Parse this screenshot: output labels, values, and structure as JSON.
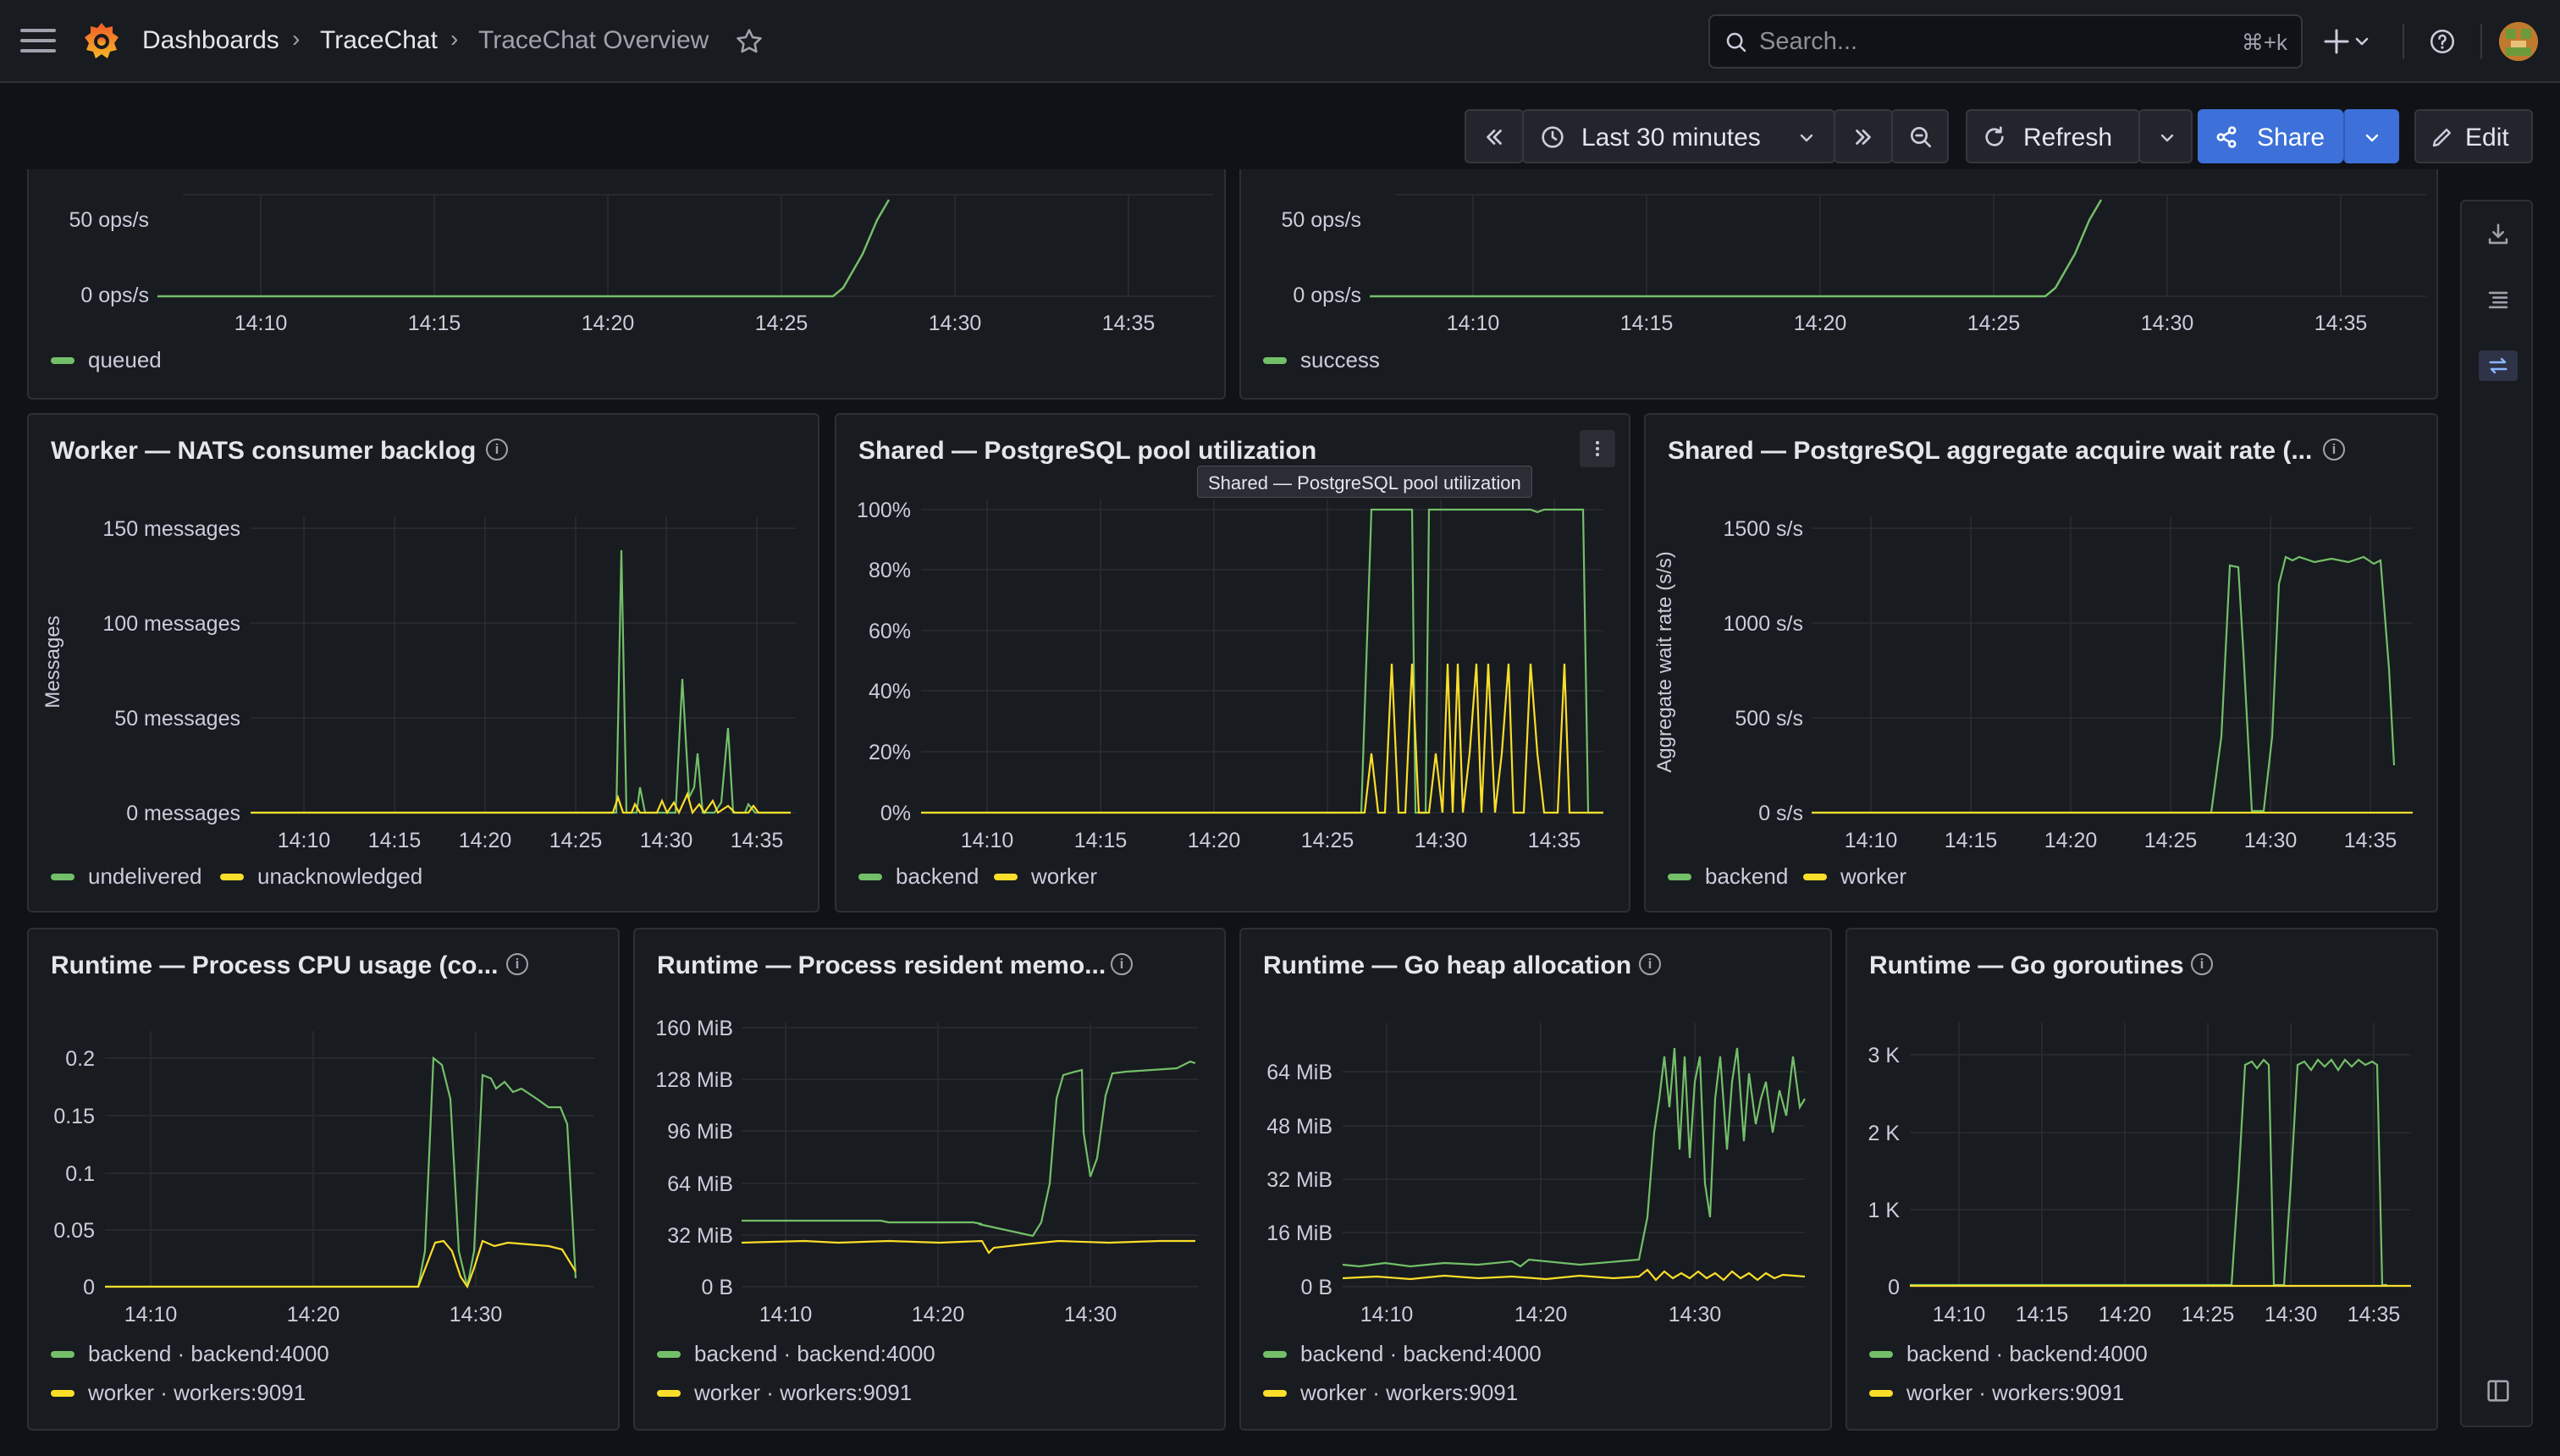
{
  "breadcrumb": {
    "root": "Dashboards",
    "folder": "TraceChat",
    "current": "TraceChat Overview"
  },
  "search": {
    "placeholder": "Search...",
    "shortcut": "⌘+k"
  },
  "toolbar": {
    "time_range": "Last 30 minutes",
    "refresh": "Refresh",
    "share": "Share",
    "edit": "Edit"
  },
  "colors": {
    "green": "#73bf69",
    "yellow": "#fade2a",
    "accent": "#3d71d9",
    "bg": "#111217",
    "panel": "#181b1f"
  },
  "panels": {
    "top_left": {
      "yticks": [
        "50 ops/s",
        "0 ops/s"
      ],
      "xticks": [
        "14:10",
        "14:15",
        "14:20",
        "14:25",
        "14:30",
        "14:35"
      ],
      "legend": [
        "queued"
      ]
    },
    "top_right": {
      "yticks": [
        "50 ops/s",
        "0 ops/s"
      ],
      "xticks": [
        "14:10",
        "14:15",
        "14:20",
        "14:25",
        "14:30",
        "14:35"
      ],
      "legend": [
        "success"
      ]
    },
    "nats": {
      "title": "Worker — NATS consumer backlog",
      "ylabel": "Messages",
      "yticks": [
        "150  messages",
        "100  messages",
        "50  messages",
        "0  messages"
      ],
      "xticks": [
        "14:10",
        "14:15",
        "14:20",
        "14:25",
        "14:30",
        "14:35"
      ],
      "legend": [
        "undelivered",
        "unacknowledged"
      ]
    },
    "pool": {
      "title": "Shared — PostgreSQL pool utilization",
      "tooltip": "Shared — PostgreSQL pool utilization",
      "yticks": [
        "100%",
        "80%",
        "60%",
        "40%",
        "20%",
        "0%"
      ],
      "xticks": [
        "14:10",
        "14:15",
        "14:20",
        "14:25",
        "14:30",
        "14:35"
      ],
      "legend": [
        "backend",
        "worker"
      ]
    },
    "wait": {
      "title": "Shared — PostgreSQL aggregate acquire wait rate (...",
      "ylabel": "Aggregate wait rate (s/s)",
      "yticks": [
        "1500  s/s",
        "1000  s/s",
        "500  s/s",
        "0  s/s"
      ],
      "xticks": [
        "14:10",
        "14:15",
        "14:20",
        "14:25",
        "14:30",
        "14:35"
      ],
      "legend": [
        "backend",
        "worker"
      ]
    },
    "cpu": {
      "title": "Runtime — Process CPU usage (co...",
      "yticks": [
        "0.2",
        "0.15",
        "0.1",
        "0.05",
        "0"
      ],
      "xticks": [
        "14:10",
        "14:20",
        "14:30"
      ],
      "legend": [
        "backend · backend:4000",
        "worker · workers:9091"
      ]
    },
    "mem": {
      "title": "Runtime — Process resident memo...",
      "yticks": [
        "160 MiB",
        "128 MiB",
        "96 MiB",
        "64 MiB",
        "32 MiB",
        "0 B"
      ],
      "xticks": [
        "14:10",
        "14:20",
        "14:30"
      ],
      "legend": [
        "backend · backend:4000",
        "worker · workers:9091"
      ]
    },
    "heap": {
      "title": "Runtime — Go heap allocation",
      "yticks": [
        "64 MiB",
        "48 MiB",
        "32 MiB",
        "16 MiB",
        "0 B"
      ],
      "xticks": [
        "14:10",
        "14:20",
        "14:30"
      ],
      "legend": [
        "backend · backend:4000",
        "worker · workers:9091"
      ]
    },
    "gor": {
      "title": "Runtime — Go goroutines",
      "yticks": [
        "3 K",
        "2 K",
        "1 K",
        "0"
      ],
      "xticks": [
        "14:10",
        "14:15",
        "14:20",
        "14:25",
        "14:30",
        "14:35"
      ],
      "legend": [
        "backend · backend:4000",
        "worker · workers:9091"
      ]
    }
  },
  "chart_data": [
    {
      "type": "line",
      "title": "",
      "ylabel": "",
      "x": [
        "14:10",
        "14:15",
        "14:20",
        "14:25",
        "14:30",
        "14:35"
      ],
      "ylim_label": [
        "0 ops/s",
        "50 ops/s"
      ],
      "series": [
        {
          "name": "queued",
          "points": [
            [
              "14:06",
              0
            ],
            [
              "14:26",
              0
            ],
            [
              "14:27",
              8
            ],
            [
              "14:28",
              30
            ],
            [
              "14:29",
              55
            ]
          ]
        }
      ]
    },
    {
      "type": "line",
      "title": "",
      "ylabel": "",
      "x": [
        "14:10",
        "14:15",
        "14:20",
        "14:25",
        "14:30",
        "14:35"
      ],
      "series": [
        {
          "name": "success",
          "points": [
            [
              "14:06",
              0
            ],
            [
              "14:26",
              0
            ],
            [
              "14:27",
              8
            ],
            [
              "14:28",
              30
            ],
            [
              "14:29",
              55
            ]
          ]
        }
      ]
    },
    {
      "type": "line",
      "title": "Worker — NATS consumer backlog",
      "ylabel": "Messages",
      "ylim": [
        0,
        150
      ],
      "series": [
        {
          "name": "undelivered",
          "points": [
            [
              "14:06",
              0
            ],
            [
              "14:27",
              0
            ],
            [
              "14:27.5",
              138
            ],
            [
              "14:28",
              0
            ],
            [
              "14:29",
              15
            ],
            [
              "14:30",
              0
            ],
            [
              "14:30.5",
              70
            ],
            [
              "14:31",
              10
            ],
            [
              "14:31.5",
              35
            ],
            [
              "14:32",
              0
            ],
            [
              "14:33",
              5
            ],
            [
              "14:33.5",
              45
            ],
            [
              "14:34",
              0
            ],
            [
              "14:36",
              0
            ]
          ]
        },
        {
          "name": "unacknowledged",
          "points": [
            [
              "14:06",
              0
            ],
            [
              "14:27",
              0
            ],
            [
              "14:27.5",
              8
            ],
            [
              "14:28",
              0
            ],
            [
              "14:29",
              7
            ],
            [
              "14:29.5",
              0
            ],
            [
              "14:30",
              10
            ],
            [
              "14:30.5",
              0
            ],
            [
              "14:31",
              5
            ],
            [
              "14:32",
              10
            ],
            [
              "14:33",
              3
            ],
            [
              "14:34",
              8
            ],
            [
              "14:35",
              0
            ],
            [
              "14:36",
              0
            ]
          ]
        }
      ]
    },
    {
      "type": "line",
      "title": "Shared — PostgreSQL pool utilization",
      "ylim": [
        0,
        100
      ],
      "series": [
        {
          "name": "backend",
          "points": [
            [
              "14:06",
              0
            ],
            [
              "14:25.5",
              0
            ],
            [
              "14:26",
              100
            ],
            [
              "14:27.5",
              100
            ],
            [
              "14:28",
              0
            ],
            [
              "14:28.5",
              100
            ],
            [
              "14:34",
              100
            ],
            [
              "14:34.5",
              0
            ],
            [
              "14:36",
              0
            ]
          ]
        },
        {
          "name": "worker",
          "points": [
            [
              "14:06",
              0
            ],
            [
              "14:26",
              0
            ],
            [
              "14:26.5",
              50
            ],
            [
              "14:27",
              0
            ],
            [
              "14:27.5",
              50
            ],
            [
              "14:28",
              0
            ],
            [
              "14:29",
              50
            ],
            [
              "14:29.5",
              0
            ],
            [
              "14:30",
              50
            ],
            [
              "14:30.5",
              0
            ],
            [
              "14:31",
              50
            ],
            [
              "14:32",
              0
            ],
            [
              "14:33",
              50
            ],
            [
              "14:34",
              0
            ],
            [
              "14:36",
              0
            ]
          ]
        }
      ]
    },
    {
      "type": "line",
      "title": "Shared — PostgreSQL aggregate acquire wait rate (...",
      "ylabel": "Aggregate wait rate (s/s)",
      "ylim": [
        0,
        1500
      ],
      "series": [
        {
          "name": "backend",
          "points": [
            [
              "14:06",
              0
            ],
            [
              "14:27",
              0
            ],
            [
              "14:28",
              1320
            ],
            [
              "14:28.5",
              1320
            ],
            [
              "14:29.5",
              0
            ],
            [
              "14:30",
              0
            ],
            [
              "14:30.5",
              1300
            ],
            [
              "14:31",
              1350
            ],
            [
              "14:35",
              1360
            ],
            [
              "14:36",
              250
            ]
          ]
        },
        {
          "name": "worker",
          "points": [
            [
              "14:06",
              0
            ],
            [
              "14:36",
              0
            ]
          ]
        }
      ]
    },
    {
      "type": "line",
      "title": "Runtime — Process CPU usage (co...",
      "ylim": [
        0,
        0.2
      ],
      "series": [
        {
          "name": "backend · backend:4000",
          "points": [
            [
              "14:06",
              0
            ],
            [
              "14:26",
              0
            ],
            [
              "14:27",
              0.2
            ],
            [
              "14:28",
              0.18
            ],
            [
              "14:29",
              0
            ],
            [
              "14:30",
              0.19
            ],
            [
              "14:31",
              0.17
            ],
            [
              "14:35",
              0.15
            ],
            [
              "14:36",
              0.03
            ]
          ]
        },
        {
          "name": "worker · workers:9091",
          "points": [
            [
              "14:06",
              0
            ],
            [
              "14:26",
              0
            ],
            [
              "14:27",
              0.04
            ],
            [
              "14:28",
              0.03
            ],
            [
              "14:29",
              0
            ],
            [
              "14:30",
              0.035
            ],
            [
              "14:35",
              0.03
            ],
            [
              "14:36",
              0.015
            ]
          ]
        }
      ]
    },
    {
      "type": "line",
      "title": "Runtime — Process resident memo...",
      "ylim": [
        0,
        160
      ],
      "series": [
        {
          "name": "backend · backend:4000",
          "points": [
            [
              "14:06",
              41
            ],
            [
              "14:15",
              40
            ],
            [
              "14:22",
              38
            ],
            [
              "14:26",
              32
            ],
            [
              "14:28",
              130
            ],
            [
              "14:29",
              133
            ],
            [
              "14:30",
              70
            ],
            [
              "14:31",
              125
            ],
            [
              "14:34",
              140
            ]
          ]
        },
        {
          "name": "worker · workers:9091",
          "points": [
            [
              "14:06",
              27
            ],
            [
              "14:20",
              26
            ],
            [
              "14:23",
              22
            ],
            [
              "14:26",
              27
            ],
            [
              "14:34",
              28
            ]
          ]
        }
      ]
    },
    {
      "type": "line",
      "title": "Runtime — Go heap allocation",
      "ylim": [
        0,
        72
      ],
      "series": [
        {
          "name": "backend · backend:4000",
          "points": [
            [
              "14:06",
              6
            ],
            [
              "14:20",
              6
            ],
            [
              "14:26",
              8
            ],
            [
              "14:27",
              60
            ],
            [
              "14:28",
              40
            ],
            [
              "14:29",
              65
            ],
            [
              "14:30",
              20
            ],
            [
              "14:31",
              65
            ],
            [
              "14:33",
              45
            ],
            [
              "14:35",
              70
            ],
            [
              "14:36",
              45
            ]
          ]
        },
        {
          "name": "worker · workers:9091",
          "points": [
            [
              "14:06",
              3
            ],
            [
              "14:36",
              3
            ]
          ]
        }
      ]
    },
    {
      "type": "line",
      "title": "Runtime — Go goroutines",
      "ylim": [
        0,
        3000
      ],
      "series": [
        {
          "name": "backend · backend:4000",
          "points": [
            [
              "14:06",
              0
            ],
            [
              "14:27",
              0
            ],
            [
              "14:28",
              2900
            ],
            [
              "14:29",
              2900
            ],
            [
              "14:29.5",
              0
            ],
            [
              "14:30",
              0
            ],
            [
              "14:31",
              2900
            ],
            [
              "14:35",
              2900
            ],
            [
              "14:36",
              0
            ]
          ]
        },
        {
          "name": "worker · workers:9091",
          "points": [
            [
              "14:06",
              0
            ],
            [
              "14:36",
              0
            ]
          ]
        }
      ]
    }
  ]
}
